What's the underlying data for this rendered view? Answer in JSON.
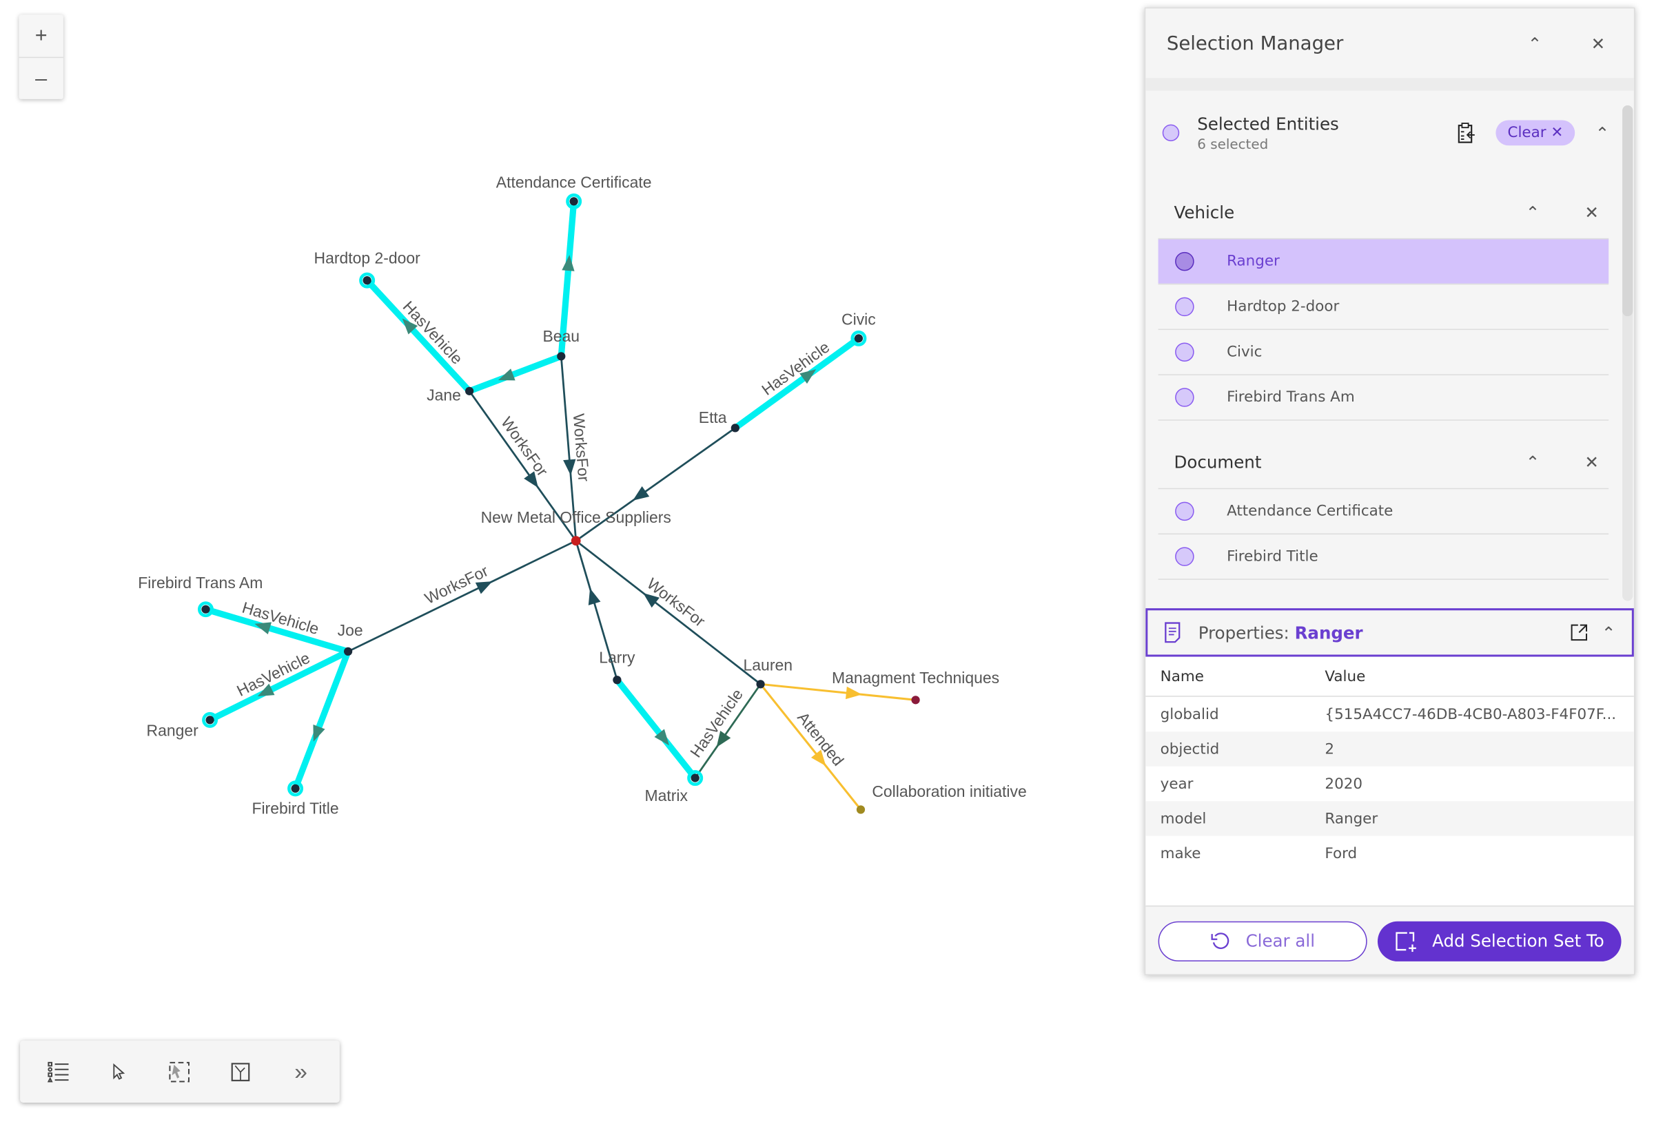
{
  "map_controls": {
    "zoom_in": "+",
    "zoom_out": "–"
  },
  "graph": {
    "colors": {
      "selected": "#00f0f0",
      "default": "#1f4e5a",
      "hasvehicle_default": "#2e6a55",
      "attended": "#f8bf30",
      "center_node": "#c81e1e",
      "node": "#1a2a3a"
    },
    "nodes": [
      {
        "id": "nmos",
        "label": "New Metal Office Suppliers"
      },
      {
        "id": "beau",
        "label": "Beau"
      },
      {
        "id": "jane",
        "label": "Jane"
      },
      {
        "id": "hardtop",
        "label": "Hardtop 2-door"
      },
      {
        "id": "attcert",
        "label": "Attendance Certificate"
      },
      {
        "id": "etta",
        "label": "Etta"
      },
      {
        "id": "civic",
        "label": "Civic"
      },
      {
        "id": "joe",
        "label": "Joe"
      },
      {
        "id": "firebird",
        "label": "Firebird Trans Am"
      },
      {
        "id": "ranger",
        "label": "Ranger"
      },
      {
        "id": "firetitle",
        "label": "Firebird Title"
      },
      {
        "id": "larry",
        "label": "Larry"
      },
      {
        "id": "matrix",
        "label": "Matrix"
      },
      {
        "id": "lauren",
        "label": "Lauren"
      },
      {
        "id": "mgmt",
        "label": "Managment Techniques"
      },
      {
        "id": "collab",
        "label": "Collaboration initiative"
      }
    ],
    "edges": [
      {
        "source": "jane",
        "target": "nmos",
        "label": "WorksFor",
        "style": "default"
      },
      {
        "source": "beau",
        "target": "nmos",
        "label": "WorksFor",
        "style": "default"
      },
      {
        "source": "etta",
        "target": "nmos",
        "label": "",
        "style": "default"
      },
      {
        "source": "joe",
        "target": "nmos",
        "label": "WorksFor",
        "style": "default"
      },
      {
        "source": "larry",
        "target": "nmos",
        "label": "",
        "style": "default"
      },
      {
        "source": "lauren",
        "target": "nmos",
        "label": "WorksFor",
        "style": "default"
      },
      {
        "source": "jane",
        "target": "hardtop",
        "label": "HasVehicle",
        "style": "selected"
      },
      {
        "source": "beau",
        "target": "jane",
        "label": "",
        "style": "selected"
      },
      {
        "source": "beau",
        "target": "attcert",
        "label": "",
        "style": "selected"
      },
      {
        "source": "etta",
        "target": "civic",
        "label": "HasVehicle",
        "style": "selected"
      },
      {
        "source": "joe",
        "target": "firebird",
        "label": "HasVehicle",
        "style": "selected"
      },
      {
        "source": "joe",
        "target": "ranger",
        "label": "HasVehicle",
        "style": "selected"
      },
      {
        "source": "joe",
        "target": "firetitle",
        "label": "",
        "style": "selected"
      },
      {
        "source": "larry",
        "target": "matrix",
        "label": "",
        "style": "selected"
      },
      {
        "source": "lauren",
        "target": "matrix",
        "label": "HasVehicle",
        "style": "hasvehicle"
      },
      {
        "source": "lauren",
        "target": "mgmt",
        "label": "",
        "style": "attended"
      },
      {
        "source": "lauren",
        "target": "collab",
        "label": "Attended",
        "style": "attended"
      }
    ]
  },
  "toolbar": {
    "items": [
      "list-icon",
      "select-pointer-icon",
      "lasso-select-icon",
      "layout-icon",
      "expand-icon"
    ],
    "expand": "»"
  },
  "panel": {
    "title": "Selection Manager",
    "selected": {
      "title": "Selected Entities",
      "count": "6 selected",
      "clear": "Clear"
    },
    "groups": [
      {
        "name": "Vehicle",
        "items": [
          "Ranger",
          "Hardtop 2-door",
          "Civic",
          "Firebird Trans Am"
        ]
      },
      {
        "name": "Document",
        "items": [
          "Attendance Certificate",
          "Firebird Title"
        ]
      }
    ],
    "active_item": "Ranger",
    "properties": {
      "label": "Properties:",
      "entity": "Ranger",
      "headers": {
        "name": "Name",
        "value": "Value"
      },
      "rows": [
        {
          "name": "globalid",
          "value": "{515A4CC7-46DB-4CB0-A803-F4F07F..."
        },
        {
          "name": "objectid",
          "value": "2"
        },
        {
          "name": "year",
          "value": "2020"
        },
        {
          "name": "model",
          "value": "Ranger"
        },
        {
          "name": "make",
          "value": "Ford"
        }
      ]
    },
    "clear_all": "Clear all",
    "add_set": "Add Selection Set To"
  }
}
